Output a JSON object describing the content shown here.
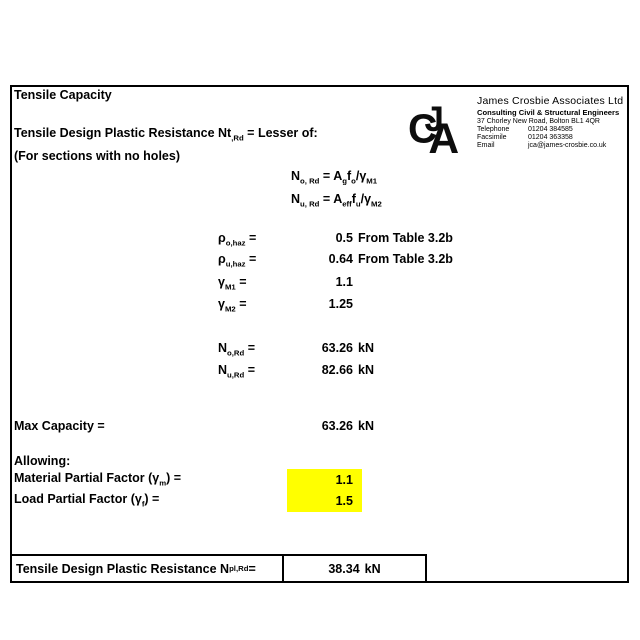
{
  "colors": {
    "highlight": "#FFFF00",
    "border": "#000000",
    "text": "#000000"
  },
  "header": {
    "title": "Tensile Capacity",
    "company": {
      "logo_icon": "jca-monogram",
      "name": "James Crosbie Associates Ltd",
      "tagline": "Consulting Civil & Structural Engineers",
      "address": "37 Chorley New Road, Bolton BL1 4QR",
      "contacts": [
        {
          "label": "Telephone",
          "value": "01204 384585"
        },
        {
          "label": "Facsimile",
          "value": "01204 363358"
        },
        {
          "label": "Email",
          "value": "jca@james-crosbie.co.uk"
        }
      ]
    }
  },
  "intro": {
    "subtitle": [
      {
        "t": "Tensile Design Plastic Resistance Nt"
      },
      {
        "t": ",Rd",
        "s": true
      },
      {
        "t": " = Lesser of:"
      }
    ],
    "note": "(For sections with no holes)"
  },
  "formulas": [
    [
      {
        "t": "N"
      },
      {
        "t": "o, Rd",
        "s": true
      },
      {
        "t": " = A"
      },
      {
        "t": "g",
        "s": true
      },
      {
        "t": "f"
      },
      {
        "t": "o",
        "s": true
      },
      {
        "t": "/γ"
      },
      {
        "t": "M1",
        "s": true
      }
    ],
    [
      {
        "t": "N"
      },
      {
        "t": "u, Rd",
        "s": true
      },
      {
        "t": " = A"
      },
      {
        "t": "eff",
        "s": true
      },
      {
        "t": "f"
      },
      {
        "t": "u",
        "s": true
      },
      {
        "t": "/γ"
      },
      {
        "t": "M2",
        "s": true
      }
    ]
  ],
  "parameters": [
    {
      "label": [
        {
          "t": "ρ"
        },
        {
          "t": "o,haz",
          "s": true
        },
        {
          "t": " ="
        }
      ],
      "value": "0.5",
      "note": "From Table 3.2b"
    },
    {
      "label": [
        {
          "t": "ρ"
        },
        {
          "t": "u,haz",
          "s": true
        },
        {
          "t": " ="
        }
      ],
      "value": "0.64",
      "note": "From Table 3.2b"
    },
    {
      "label": [
        {
          "t": "γ"
        },
        {
          "t": "M1",
          "s": true
        },
        {
          "t": " ="
        }
      ],
      "value": "1.1",
      "note": ""
    },
    {
      "label": [
        {
          "t": "γ"
        },
        {
          "t": "M2",
          "s": true
        },
        {
          "t": " ="
        }
      ],
      "value": "1.25",
      "note": ""
    }
  ],
  "results": [
    {
      "label": [
        {
          "t": "N"
        },
        {
          "t": "o,Rd",
          "s": true
        },
        {
          "t": " ="
        }
      ],
      "value": "63.26",
      "unit": "kN"
    },
    {
      "label": [
        {
          "t": "N"
        },
        {
          "t": "u,Rd",
          "s": true
        },
        {
          "t": " ="
        }
      ],
      "value": "82.66",
      "unit": "kN"
    }
  ],
  "max_capacity": {
    "label": "Max Capacity =",
    "value": "63.26",
    "unit": "kN"
  },
  "allowing": {
    "heading": "Allowing:",
    "factors": [
      {
        "label": [
          {
            "t": "Material Partial Factor (γ"
          },
          {
            "t": "m",
            "s": true
          },
          {
            "t": ") ="
          }
        ],
        "value": "1.1"
      },
      {
        "label": [
          {
            "t": "Load Partial Factor (γ"
          },
          {
            "t": "f",
            "s": true
          },
          {
            "t": ") ="
          }
        ],
        "value": "1.5"
      }
    ]
  },
  "final": {
    "label": [
      {
        "t": "Tensile Design Plastic Resistance N"
      },
      {
        "t": "pl,Rd",
        "s": true
      },
      {
        "t": " ="
      }
    ],
    "value": "38.34",
    "unit": "kN"
  }
}
